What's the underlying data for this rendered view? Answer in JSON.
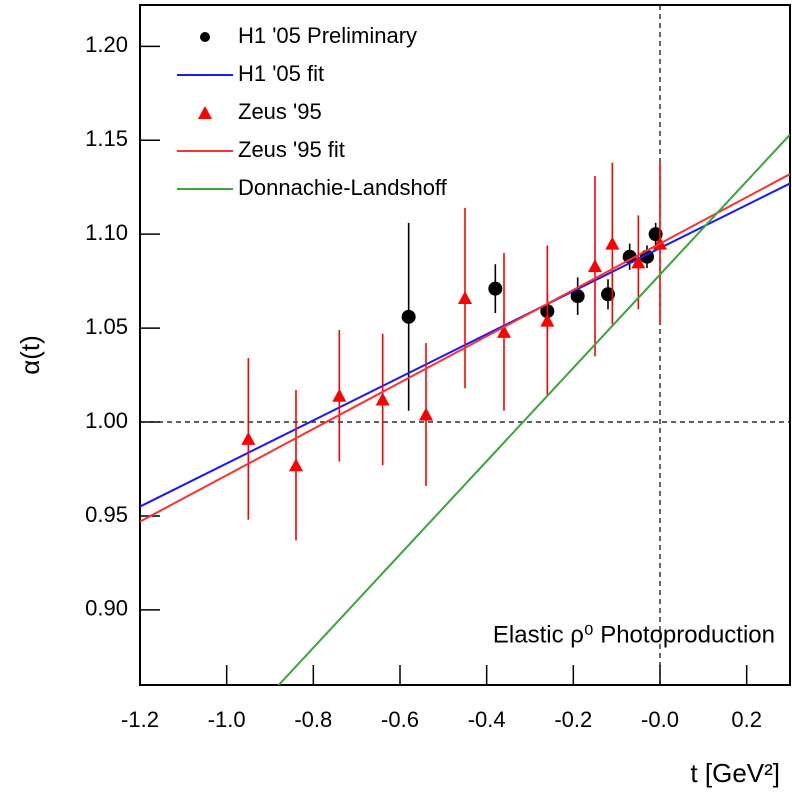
{
  "chart_data": {
    "type": "scatter",
    "xlabel": "t [GeV²]",
    "ylabel": "α(t)",
    "annotation": "Elastic ρ⁰ Photoproduction",
    "xlim": [
      -1.2,
      0.3
    ],
    "ylim": [
      0.86,
      1.222
    ],
    "xticks": [
      {
        "value": -1.2,
        "label": "-1.2"
      },
      {
        "value": -1.0,
        "label": "-1.0"
      },
      {
        "value": -0.8,
        "label": "-0.8"
      },
      {
        "value": -0.6,
        "label": "-0.6"
      },
      {
        "value": -0.4,
        "label": "-0.4"
      },
      {
        "value": -0.2,
        "label": "-0.2"
      },
      {
        "value": 0,
        "label": "-0.0"
      },
      {
        "value": 0.2,
        "label": "0.2"
      }
    ],
    "yticks": [
      {
        "value": 0.9,
        "label": "0.90"
      },
      {
        "value": 0.95,
        "label": "0.95"
      },
      {
        "value": 1.0,
        "label": "1.00"
      },
      {
        "value": 1.05,
        "label": "1.05"
      },
      {
        "value": 1.1,
        "label": "1.10"
      },
      {
        "value": 1.15,
        "label": "1.15"
      },
      {
        "value": 1.2,
        "label": "1.20"
      }
    ],
    "hline": 1.0,
    "vline": 0,
    "legend": "upper left",
    "series": [
      {
        "name": "H1 '05 Preliminary",
        "type": "scatter",
        "marker": "circle",
        "color": "#000000",
        "x": [
          -0.58,
          -0.38,
          -0.26,
          -0.19,
          -0.12,
          -0.07,
          -0.03,
          -0.01
        ],
        "values": [
          1.056,
          1.071,
          1.059,
          1.067,
          1.068,
          1.088,
          1.088,
          1.1
        ],
        "errors": [
          0.05,
          0.013,
          0.011,
          0.01,
          0.008,
          0.007,
          0.006,
          0.006
        ]
      },
      {
        "name": "H1 '05 fit",
        "type": "line",
        "color": "#1a1aff",
        "x": [
          -1.2,
          0.3
        ],
        "values": [
          0.955,
          1.127
        ]
      },
      {
        "name": "Zeus '95",
        "type": "scatter",
        "marker": "triangle",
        "color": "#ff0000",
        "x": [
          -0.95,
          -0.84,
          -0.74,
          -0.64,
          -0.54,
          -0.45,
          -0.36,
          -0.26,
          -0.15,
          -0.11,
          -0.05,
          0.0
        ],
        "values": [
          0.991,
          0.977,
          1.014,
          1.012,
          1.004,
          1.066,
          1.048,
          1.054,
          1.083,
          1.095,
          1.085,
          1.095
        ],
        "errors": [
          0.043,
          0.04,
          0.035,
          0.035,
          0.038,
          0.048,
          0.042,
          0.04,
          0.048,
          0.043,
          0.025,
          0.043
        ]
      },
      {
        "name": "Zeus '95 fit",
        "type": "line",
        "color": "#ff3030",
        "x": [
          -1.2,
          0.3
        ],
        "values": [
          0.947,
          1.132
        ]
      },
      {
        "name": "Donnachie-Landshoff",
        "type": "line",
        "color": "#3aa53a",
        "x": [
          -0.9,
          0.3
        ],
        "values": [
          0.855,
          1.153
        ]
      }
    ]
  }
}
